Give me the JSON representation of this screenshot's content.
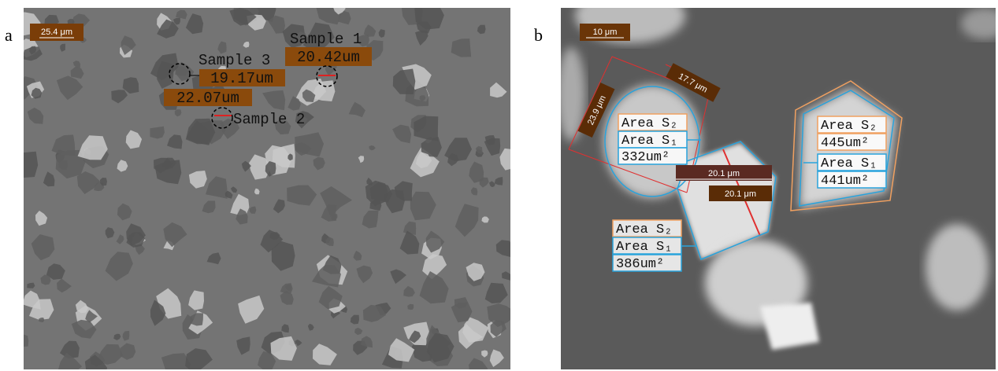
{
  "panel_a": {
    "label": "a",
    "scale_bar": "25.4 μm",
    "samples": [
      {
        "name": "Sample 1",
        "size": "20.42um"
      },
      {
        "name": "Sample 3",
        "size": "19.17um",
        "size_2": "22.07um"
      },
      {
        "name": "Sample 2"
      }
    ]
  },
  "panel_b": {
    "label": "b",
    "scale_bar": "10 μm",
    "dimensions": [
      "17.7 μm",
      "23.9 μm",
      "20.1 μm",
      "20.1 μm"
    ],
    "particles": [
      {
        "area_s2": "Area S₂",
        "area_s1": "Area S₁",
        "value": "332um²"
      },
      {
        "area_s2": "Area S₂",
        "value_s2": "445um²",
        "area_s1": "Area S₁",
        "value": "441um²"
      },
      {
        "area_s2": "Area S₂",
        "area_s1": "Area S₁",
        "value": "386um²"
      }
    ]
  }
}
